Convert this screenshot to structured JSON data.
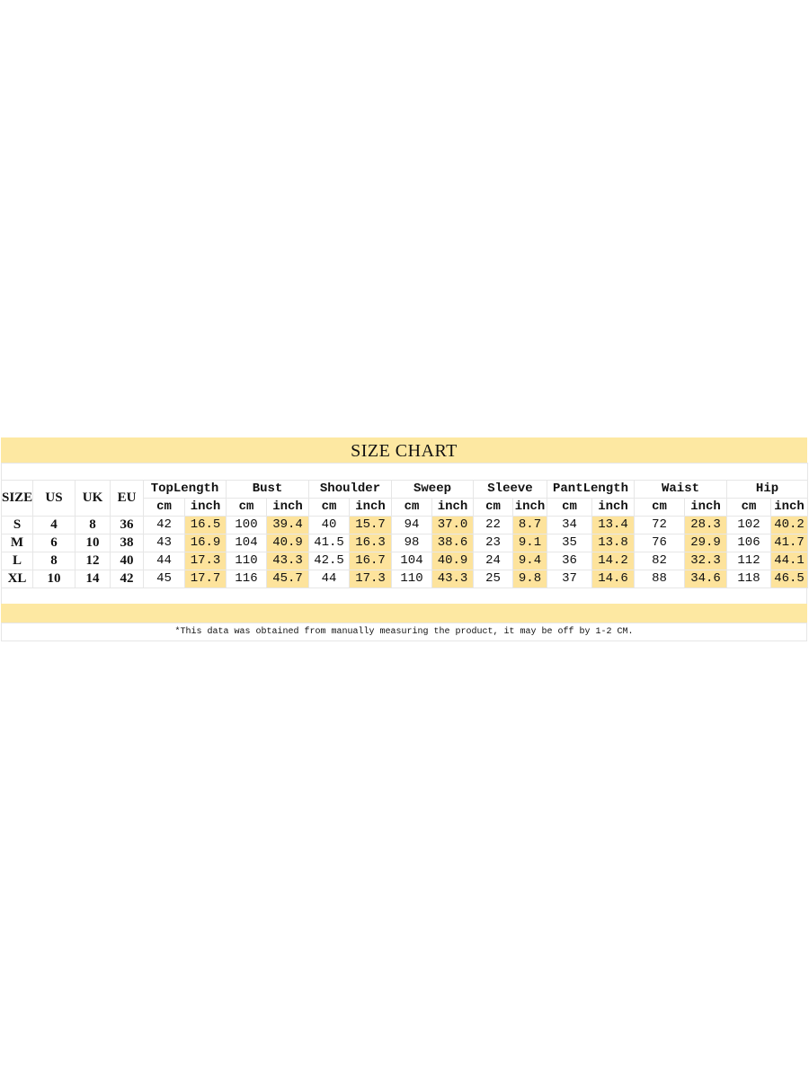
{
  "title": "SIZE CHART",
  "columns": {
    "fixed": [
      "SIZE",
      "US",
      "UK",
      "EU"
    ],
    "measures": [
      "TopLength",
      "Bust",
      "Shoulder",
      "Sweep",
      "Sleeve",
      "PantLength",
      "Waist",
      "Hip"
    ],
    "units": [
      "cm",
      "inch"
    ]
  },
  "rows": [
    {
      "size": "S",
      "us": "4",
      "uk": "8",
      "eu": "36",
      "values": [
        [
          "42",
          "16.5"
        ],
        [
          "100",
          "39.4"
        ],
        [
          "40",
          "15.7"
        ],
        [
          "94",
          "37.0"
        ],
        [
          "22",
          "8.7"
        ],
        [
          "34",
          "13.4"
        ],
        [
          "72",
          "28.3"
        ],
        [
          "102",
          "40.2"
        ]
      ]
    },
    {
      "size": "M",
      "us": "6",
      "uk": "10",
      "eu": "38",
      "values": [
        [
          "43",
          "16.9"
        ],
        [
          "104",
          "40.9"
        ],
        [
          "41.5",
          "16.3"
        ],
        [
          "98",
          "38.6"
        ],
        [
          "23",
          "9.1"
        ],
        [
          "35",
          "13.8"
        ],
        [
          "76",
          "29.9"
        ],
        [
          "106",
          "41.7"
        ]
      ]
    },
    {
      "size": "L",
      "us": "8",
      "uk": "12",
      "eu": "40",
      "values": [
        [
          "44",
          "17.3"
        ],
        [
          "110",
          "43.3"
        ],
        [
          "42.5",
          "16.7"
        ],
        [
          "104",
          "40.9"
        ],
        [
          "24",
          "9.4"
        ],
        [
          "36",
          "14.2"
        ],
        [
          "82",
          "32.3"
        ],
        [
          "112",
          "44.1"
        ]
      ]
    },
    {
      "size": "XL",
      "us": "10",
      "uk": "14",
      "eu": "42",
      "values": [
        [
          "45",
          "17.7"
        ],
        [
          "116",
          "45.7"
        ],
        [
          "44",
          "17.3"
        ],
        [
          "110",
          "43.3"
        ],
        [
          "25",
          "9.8"
        ],
        [
          "37",
          "14.6"
        ],
        [
          "88",
          "34.6"
        ],
        [
          "118",
          "46.5"
        ]
      ]
    }
  ],
  "note": "*This data was obtained from manually measuring the product, it may be off by 1-2 CM.",
  "colors": {
    "highlight": "#fde39c",
    "bar": "#fde8a2"
  }
}
